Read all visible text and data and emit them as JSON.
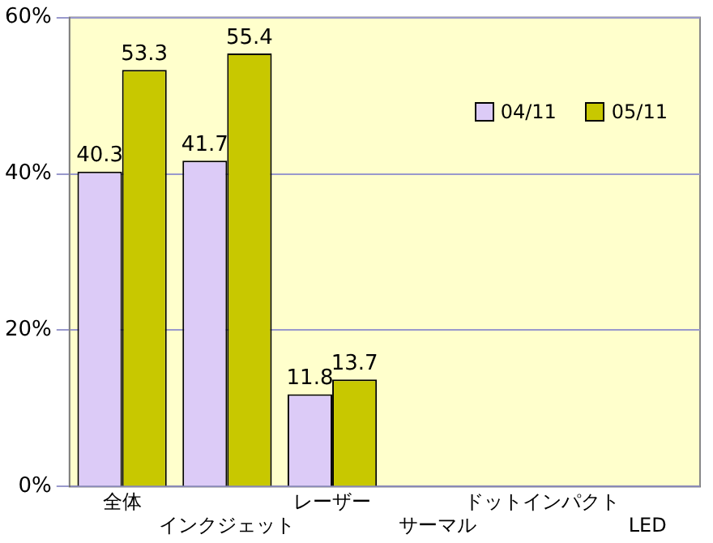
{
  "chart_data": {
    "type": "bar",
    "categories": [
      "全体",
      "インクジェット",
      "レーザー",
      "サーマル",
      "ドットインパクト",
      "LED"
    ],
    "series": [
      {
        "name": "04/11",
        "color": "#dccbf7",
        "values": [
          40.3,
          41.7,
          11.8,
          null,
          null,
          null
        ]
      },
      {
        "name": "05/11",
        "color": "#c8c800",
        "values": [
          53.3,
          55.4,
          13.7,
          null,
          null,
          null
        ]
      }
    ],
    "ylim": [
      0,
      60
    ],
    "yticks": [
      {
        "value": 0,
        "label": "0%"
      },
      {
        "value": 20,
        "label": "20%"
      },
      {
        "value": 40,
        "label": "40%"
      },
      {
        "value": 60,
        "label": "60%"
      }
    ],
    "grid": "y",
    "legend": "top right",
    "data_labels": true
  }
}
